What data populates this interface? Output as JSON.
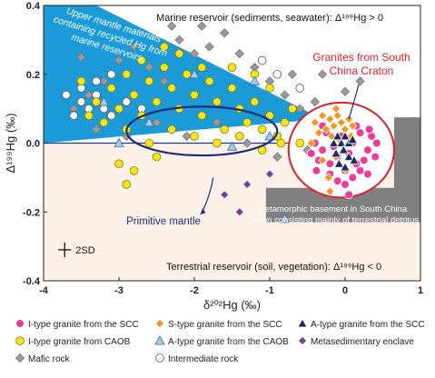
{
  "chart_data": {
    "type": "scatter",
    "xlabel": "δ²⁰²Hg (‰)",
    "ylabel": "Δ¹⁹⁹Hg (‰)",
    "xlim": [
      -4,
      1
    ],
    "ylim": [
      -0.4,
      0.4
    ],
    "x_ticks": [
      "-4",
      "-3",
      "-2",
      "-1",
      "0",
      "1"
    ],
    "y_ticks": [
      "-0.4",
      "-0.2",
      "0.0",
      "0.2",
      "0.4"
    ],
    "grid": false,
    "legend_position": "bottom",
    "annotations": {
      "marine": "Marine reservoir (sediments, seawater): Δ¹⁹⁹Hg > 0",
      "terrestrial": "Terrestrial reservoir (soil, vegetation): Δ¹⁹⁹Hg < 0",
      "mantle_line1": "Upper mantle materials",
      "mantle_line2": "containing recycled Hg from",
      "mantle_line3": "marine reservoirs",
      "granites_line1": "Granites from South",
      "granites_line2": "China Craton",
      "primitive": "Primitive mantle",
      "meta_line1": "Metamorphic basement in South China",
      "meta_line2": "Craton consisting mainly of terrestrial detritus",
      "sd": "2SD"
    },
    "series": [
      {
        "name": "I-type granite from the SCC",
        "marker": "circle",
        "color": "#f0399a",
        "points": [
          [
            -0.45,
            -0.03
          ],
          [
            -0.4,
            0.0
          ],
          [
            -0.35,
            -0.05
          ],
          [
            -0.3,
            -0.02
          ],
          [
            -0.25,
            0.03
          ],
          [
            -0.2,
            -0.06
          ],
          [
            -0.15,
            -0.01
          ],
          [
            -0.1,
            -0.04
          ],
          [
            -0.05,
            0.02
          ],
          [
            0.0,
            -0.08
          ],
          [
            0.05,
            -0.03
          ],
          [
            0.1,
            0.0
          ],
          [
            0.15,
            -0.06
          ],
          [
            0.2,
            0.03
          ],
          [
            0.25,
            -0.05
          ],
          [
            0.3,
            -0.02
          ],
          [
            0.35,
            0.02
          ],
          [
            0.4,
            -0.04
          ],
          [
            -0.2,
            -0.09
          ],
          [
            -0.1,
            -0.11
          ],
          [
            0.0,
            -0.12
          ],
          [
            0.1,
            -0.1
          ],
          [
            0.2,
            -0.08
          ],
          [
            0.3,
            -0.09
          ],
          [
            0.32,
            0.04
          ],
          [
            -0.3,
            0.05
          ],
          [
            0.15,
            0.05
          ],
          [
            -0.38,
            -0.08
          ],
          [
            0.42,
            0.0
          ],
          [
            0.05,
            -0.15
          ]
        ]
      },
      {
        "name": "S-type granite from the SCC",
        "marker": "diamond",
        "color": "#f7941d",
        "points": [
          [
            -0.4,
            0.06
          ],
          [
            -0.3,
            0.08
          ],
          [
            -0.25,
            0.04
          ],
          [
            -0.2,
            0.07
          ],
          [
            -0.15,
            0.05
          ],
          [
            -0.1,
            0.08
          ],
          [
            -0.05,
            0.06
          ],
          [
            0.0,
            0.04
          ],
          [
            0.05,
            0.07
          ],
          [
            0.1,
            0.05
          ],
          [
            -0.35,
            0.03
          ],
          [
            -0.18,
            0.02
          ],
          [
            -0.08,
            0.01
          ],
          [
            0.08,
            0.02
          ],
          [
            -0.3,
            -0.05
          ],
          [
            -0.22,
            -0.1
          ],
          [
            -0.12,
            -0.04
          ],
          [
            0.02,
            -0.08
          ],
          [
            -0.45,
            0.0
          ],
          [
            -0.2,
            -0.14
          ],
          [
            -0.12,
            0.1
          ]
        ]
      },
      {
        "name": "A-type granite from the SCC",
        "marker": "triangle",
        "color": "#1b2a5e",
        "points": [
          [
            -0.15,
            0.0
          ],
          [
            -0.1,
            0.02
          ],
          [
            -0.05,
            0.0
          ],
          [
            0.0,
            0.02
          ],
          [
            0.05,
            0.0
          ],
          [
            -0.12,
            -0.03
          ],
          [
            -0.02,
            -0.02
          ],
          [
            0.05,
            -0.04
          ],
          [
            -0.08,
            -0.06
          ],
          [
            0.0,
            -0.07
          ],
          [
            0.1,
            0.01
          ],
          [
            0.12,
            -0.05
          ]
        ]
      },
      {
        "name": "I-type granite from CAOB",
        "marker": "circle",
        "color": "#f5e616",
        "points": [
          [
            -3.5,
            0.18
          ],
          [
            -3.3,
            0.12
          ],
          [
            -3.1,
            0.16
          ],
          [
            -3.0,
            0.1
          ],
          [
            -2.9,
            0.2
          ],
          [
            -2.8,
            0.14
          ],
          [
            -2.7,
            0.08
          ],
          [
            -2.6,
            0.18
          ],
          [
            -2.5,
            0.12
          ],
          [
            -2.4,
            0.22
          ],
          [
            -2.3,
            0.16
          ],
          [
            -2.2,
            0.1
          ],
          [
            -2.1,
            0.2
          ],
          [
            -2.0,
            0.14
          ],
          [
            -1.9,
            0.08
          ],
          [
            -1.8,
            0.18
          ],
          [
            -1.7,
            0.12
          ],
          [
            -1.6,
            0.04
          ],
          [
            -1.5,
            0.16
          ],
          [
            -1.4,
            0.1
          ],
          [
            -1.3,
            0.06
          ],
          [
            -1.2,
            0.12
          ],
          [
            -1.1,
            0.04
          ],
          [
            -1.0,
            0.08
          ],
          [
            -0.9,
            0.02
          ],
          [
            -0.8,
            0.06
          ],
          [
            -0.7,
            0.1
          ],
          [
            -0.6,
            0.0
          ],
          [
            -2.9,
            0.04
          ],
          [
            -2.6,
            0.0
          ],
          [
            -2.3,
            0.04
          ],
          [
            -2.0,
            0.02
          ],
          [
            -1.7,
            0.0
          ],
          [
            -1.4,
            0.02
          ],
          [
            -1.1,
            -0.02
          ],
          [
            -0.85,
            0.0
          ],
          [
            -2.7,
            0.24
          ],
          [
            -2.2,
            0.26
          ],
          [
            -1.9,
            0.22
          ],
          [
            -1.5,
            0.22
          ],
          [
            -3.2,
            0.06
          ],
          [
            -3.4,
            0.08
          ],
          [
            -2.8,
            -0.08
          ],
          [
            -2.9,
            -0.12
          ],
          [
            -3.0,
            -0.06
          ],
          [
            -2.5,
            -0.04
          ],
          [
            -2.4,
            0.28
          ],
          [
            -1.2,
            0.2
          ],
          [
            -1.0,
            0.16
          ]
        ]
      },
      {
        "name": "A-type granite from the CAOB",
        "marker": "triangle",
        "color": "#a7cbe8",
        "points": [
          [
            -3.2,
            0.12
          ],
          [
            -2.6,
            0.06
          ],
          [
            -2.0,
            0.2
          ],
          [
            -1.5,
            -0.01
          ],
          [
            -1.2,
            0.18
          ],
          [
            -1.0,
            0.02
          ],
          [
            -3.0,
            0.0
          ],
          [
            -0.8,
            -0.22
          ]
        ]
      },
      {
        "name": "Metasedimentary enclave",
        "marker": "diamond",
        "color": "#7b3f8f",
        "points": [
          [
            -1.6,
            -0.15
          ],
          [
            -1.3,
            -0.12
          ],
          [
            -1.0,
            -0.09
          ],
          [
            -1.4,
            -0.2
          ]
        ]
      },
      {
        "name": "Mafic rock",
        "marker": "diamond",
        "color": "#9a9a9a",
        "points": [
          [
            -3.6,
            0.1
          ],
          [
            -3.4,
            0.14
          ],
          [
            -3.2,
            0.18
          ],
          [
            -3.0,
            0.24
          ],
          [
            -2.8,
            0.28
          ],
          [
            -2.6,
            0.22
          ],
          [
            -2.4,
            0.18
          ],
          [
            -2.2,
            0.3
          ],
          [
            -2.0,
            0.26
          ],
          [
            -1.8,
            0.28
          ],
          [
            -1.6,
            0.32
          ],
          [
            -1.4,
            0.26
          ],
          [
            -1.2,
            0.22
          ],
          [
            -1.0,
            0.18
          ],
          [
            -0.8,
            0.14
          ],
          [
            -0.6,
            0.1
          ],
          [
            -0.4,
            0.12
          ],
          [
            -2.5,
            0.06
          ],
          [
            -2.1,
            0.02
          ],
          [
            -1.7,
            0.06
          ],
          [
            -1.3,
            0.0
          ],
          [
            -0.9,
            -0.04
          ],
          [
            -0.5,
            -0.02
          ],
          [
            -3.3,
            0.04
          ],
          [
            -2.9,
            0.02
          ],
          [
            -0.7,
            0.2
          ],
          [
            -0.3,
            0.2
          ],
          [
            0.0,
            0.15
          ],
          [
            0.2,
            0.18
          ],
          [
            -1.9,
            0.34
          ],
          [
            -2.3,
            0.34
          ],
          [
            -3.5,
            0.25
          ]
        ]
      },
      {
        "name": "Intermediate rock",
        "marker": "circle",
        "color": "#ffffff",
        "points": [
          [
            -3.7,
            0.14
          ],
          [
            -3.5,
            0.12
          ],
          [
            -3.4,
            0.1
          ],
          [
            -3.3,
            0.14
          ],
          [
            -3.2,
            0.1
          ],
          [
            -3.1,
            0.08
          ],
          [
            -2.9,
            0.12
          ],
          [
            -2.7,
            0.1
          ],
          [
            -3.6,
            0.08
          ],
          [
            -3.5,
            0.16
          ],
          [
            -3.3,
            0.18
          ],
          [
            -3.1,
            0.2
          ],
          [
            -1.1,
            0.24
          ],
          [
            -0.6,
            0.16
          ],
          [
            -0.9,
            0.2
          ]
        ]
      }
    ],
    "legend": [
      "I-type granite from the SCC",
      "S-type granite from the SCC",
      "A-type granite from the SCC",
      "I-type granite from CAOB",
      "A-type granite from the CAOB",
      "Metasedimentary enclave",
      "Mafic rock",
      "Intermediate rock"
    ]
  }
}
